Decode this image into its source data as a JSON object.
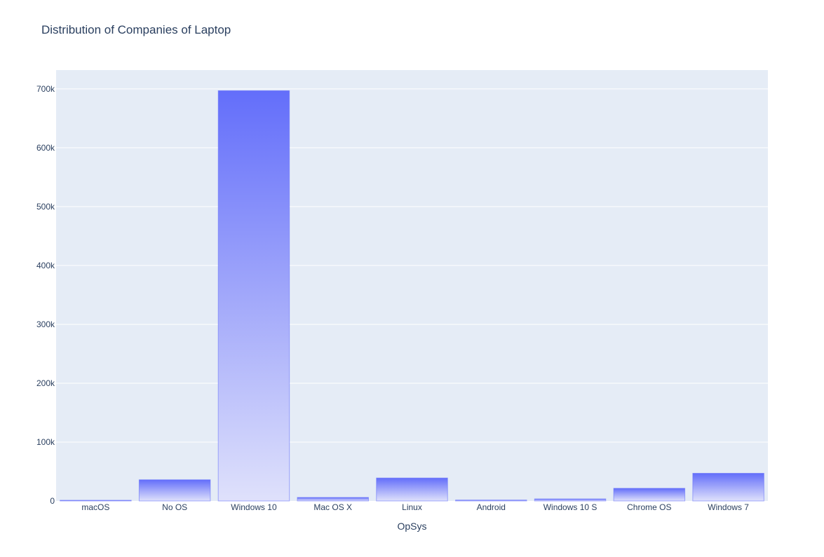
{
  "chart_data": {
    "type": "bar",
    "title": "Distribution of Companies of Laptop",
    "xlabel": "OpSys",
    "ylabel": "",
    "categories": [
      "macOS",
      "No OS",
      "Windows 10",
      "Mac OS X",
      "Linux",
      "Android",
      "Windows 10 S",
      "Chrome OS",
      "Windows 7"
    ],
    "values": [
      1000,
      36000,
      697000,
      6000,
      39000,
      1500,
      3500,
      21500,
      47000
    ],
    "ylim": [
      0,
      732000
    ],
    "yticks": [
      0,
      100000,
      200000,
      300000,
      400000,
      500000,
      600000,
      700000
    ],
    "ytick_labels": [
      "0",
      "100k",
      "200k",
      "300k",
      "400k",
      "500k",
      "600k",
      "700k"
    ],
    "grid": true,
    "colors": {
      "bar": "#636efa",
      "bar_light": "#dfe1fb",
      "plot_bg": "#e5ecf6",
      "grid": "#ffffff",
      "text": "#2a3f5f"
    }
  }
}
